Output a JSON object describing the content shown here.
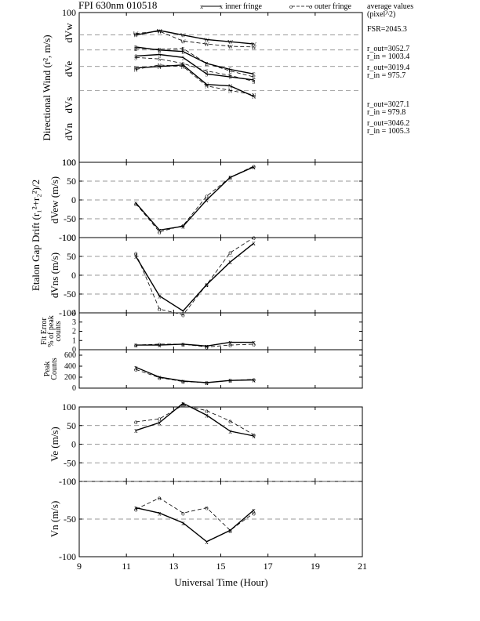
{
  "chart_data": {
    "type": "line",
    "title": "FPI 630nm 010518",
    "legend": {
      "inner": "inner fringe",
      "outer": "outer fringe",
      "placement": "top"
    },
    "xlabel": "Universal Time (Hour)",
    "xlim": [
      9,
      21
    ],
    "xticks": [
      "9",
      "11",
      "13",
      "15",
      "17",
      "19",
      "21"
    ],
    "x": [
      11.4,
      12.4,
      13.4,
      14.4,
      15.4,
      16.4
    ],
    "side_notes": {
      "avg_title1": "average values",
      "avg_title2": "(pixel^2)",
      "fsr": "FSR=2045.3",
      "pairs": [
        {
          "r_out": "r_out=3052.7",
          "r_in": "r_in = 1003.4"
        },
        {
          "r_out": "r_out=3019.4",
          "r_in": "r_in = 975.7"
        },
        {
          "r_out": "r_out=3027.1",
          "r_in": "r_in = 979.8"
        },
        {
          "r_out": "r_out=3046.2",
          "r_in": "r_in = 1005.3"
        }
      ]
    },
    "panels": [
      {
        "id": "directional",
        "ylabel": "Directional Wind (r², m/s)",
        "ylim": [
          100,
          -100
        ],
        "yticks": [
          "100",
          "100"
        ],
        "row_labels": [
          "dVw",
          "dVe",
          "dVs",
          "dVn"
        ],
        "series": [
          {
            "marker": "W",
            "inner": [
              -70,
              -76,
              -70,
              -64,
              -61,
              -58
            ],
            "outer": [
              -72,
              -75,
              -62,
              -58,
              -55,
              -54
            ]
          },
          {
            "marker": "E",
            "inner": [
              -54,
              -50,
              -48,
              -32,
              -24,
              -18
            ],
            "outer": [
              -52,
              -51,
              -52,
              -32,
              -22,
              -14
            ]
          },
          {
            "marker": "S",
            "inner": [
              -42,
              -44,
              -40,
              -18,
              -14,
              -10
            ],
            "outer": [
              -40,
              -38,
              -32,
              -22,
              -16,
              -8
            ]
          },
          {
            "marker": "N",
            "inner": [
              -26,
              -28,
              -30,
              -4,
              -2,
              12
            ],
            "outer": [
              -24,
              -30,
              -28,
              -2,
              4,
              10
            ]
          }
        ]
      },
      {
        "id": "vew",
        "ylabel": "dVew (m/s)",
        "ylim": [
          -100,
          100
        ],
        "yticks": [
          "-100",
          "-50",
          "0",
          "50",
          "100"
        ],
        "inner": [
          -8,
          -80,
          -70,
          0,
          60,
          88
        ],
        "outer": [
          -10,
          -85,
          -68,
          10,
          60,
          90
        ]
      },
      {
        "id": "vns",
        "ylabel": "dVns (m/s)",
        "ylim": [
          -100,
          100
        ],
        "yticks": [
          "-100",
          "-50",
          "0",
          "50",
          "100"
        ],
        "inner": [
          50,
          -55,
          -95,
          -25,
          35,
          85
        ],
        "outer": [
          58,
          -90,
          -105,
          -25,
          60,
          100
        ]
      },
      {
        "id": "fit",
        "ylabel_lines": [
          "Fit Error",
          "% of peak",
          "counts"
        ],
        "ylim": [
          0,
          4
        ],
        "yticks": [
          "0",
          "1",
          "2",
          "3",
          "4"
        ],
        "inner": [
          0.5,
          0.5,
          0.6,
          0.4,
          0.8,
          0.8
        ],
        "outer": [
          0.5,
          0.6,
          0.6,
          0.3,
          0.5,
          0.6
        ]
      },
      {
        "id": "peak",
        "ylabel_lines": [
          "Peak",
          "Counts"
        ],
        "ylim": [
          0,
          700
        ],
        "yticks": [
          "0",
          "200",
          "400",
          "600"
        ],
        "inner": [
          380,
          200,
          130,
          100,
          140,
          150
        ],
        "outer": [
          340,
          190,
          120,
          100,
          140,
          160
        ]
      },
      {
        "id": "ve",
        "ylabel": "Ve (m/s)",
        "ylim": [
          -100,
          100
        ],
        "yticks": [
          "-100",
          "-50",
          "0",
          "50",
          "100"
        ],
        "inner": [
          37,
          58,
          110,
          78,
          35,
          22
        ],
        "outer": [
          60,
          68,
          105,
          90,
          62,
          25
        ]
      },
      {
        "id": "vn",
        "ylabel": "Vn (m/s)",
        "ylim": [
          -100,
          0
        ],
        "yticks": [
          "-100",
          "-50",
          "0"
        ],
        "inner": [
          -35,
          -42,
          -55,
          -80,
          -65,
          -38
        ],
        "outer": [
          -37,
          -22,
          -42,
          -35,
          -65,
          -42
        ]
      }
    ],
    "etalon_label": "Etalon Gap Drift (r₁²+r₂²)/2"
  }
}
